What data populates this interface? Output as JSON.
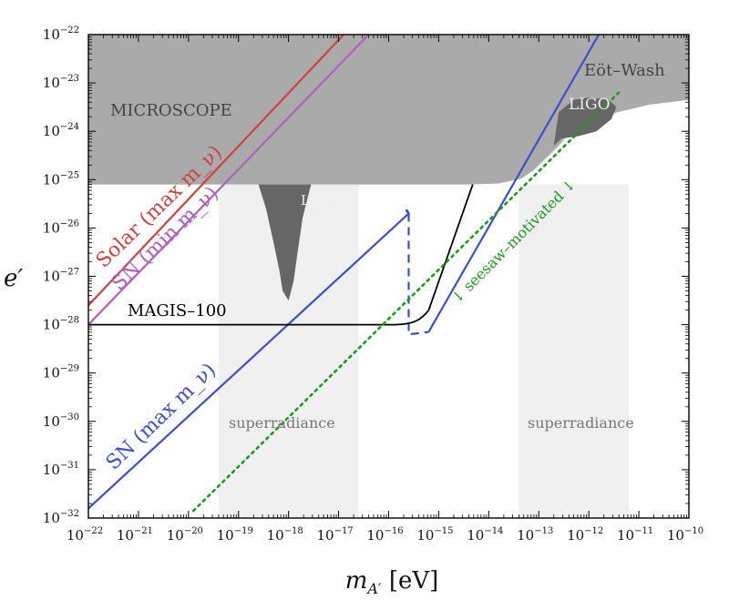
{
  "chart_data": {
    "type": "line",
    "title": "",
    "xlabel": "m_{A′} [eV]",
    "ylabel": "e′",
    "xscale": "log",
    "yscale": "log",
    "xlim": [
      -22,
      -10
    ],
    "ylim": [
      -32,
      -22
    ],
    "x_ticks": [
      -22,
      -21,
      -20,
      -19,
      -18,
      -17,
      -16,
      -15,
      -14,
      -13,
      -12,
      -11,
      -10
    ],
    "y_ticks": [
      -22,
      -23,
      -24,
      -25,
      -26,
      -27,
      -28,
      -29,
      -30,
      -31,
      -32
    ],
    "tick_base": "10",
    "grid": false,
    "colors": {
      "excluded": "#aaaaaa",
      "dark_excluded": "#666666",
      "superradiance": "#f0f0f0",
      "solar": "#d04040",
      "sn_min": "#b060b8",
      "sn_max": "#3a4fcf",
      "magis": "#000000",
      "seesaw": "#1a9a1a"
    },
    "series": [
      {
        "name": "Solar (max m_ν)",
        "points": [
          [
            -22,
            -27.6
          ],
          [
            -16.9,
            -22
          ]
        ]
      },
      {
        "name": "SN (min m_ν)",
        "points": [
          [
            -22,
            -28
          ],
          [
            -16.4,
            -22
          ]
        ]
      },
      {
        "name": "SN (max m_ν)",
        "points": [
          [
            -22,
            -31.8
          ],
          [
            -15.6,
            -25.7
          ]
        ],
        "second_branch": [
          [
            -15.2,
            -28.15
          ],
          [
            -11.8,
            -22
          ]
        ],
        "dashed": [
          [
            -15.6,
            -25.7
          ],
          [
            -15.6,
            -28.2
          ],
          [
            -15.2,
            -28.15
          ]
        ]
      },
      {
        "name": "MAGIS–100",
        "points": [
          [
            -22,
            -28
          ],
          [
            -18,
            -28
          ],
          [
            -16,
            -27.97
          ],
          [
            -15.5,
            -27.8
          ],
          [
            -14.6,
            -26.5
          ],
          [
            -14.3,
            -25.1
          ]
        ]
      },
      {
        "name": "↓ seesaw–motivated ↓",
        "points": [
          [
            -19.9,
            -31.85
          ],
          [
            -11.4,
            -23.2
          ]
        ]
      }
    ],
    "regions": [
      {
        "name": "MICROSCOPE",
        "type": "excluded"
      },
      {
        "name": "Eöt–Wash",
        "type": "excluded"
      },
      {
        "name": "LISA PF",
        "type": "excluded_dark"
      },
      {
        "name": "LIGO",
        "type": "excluded_dark"
      },
      {
        "name": "superradiance",
        "range": [
          -19.4,
          -16.6
        ]
      },
      {
        "name": "superradiance",
        "range": [
          -13.4,
          -11.2
        ]
      }
    ],
    "annotations": {
      "microscope": "MICROSCOPE",
      "eotwash": "Eöt–Wash",
      "lisa_line1": "LISA",
      "lisa_line2": "PF",
      "ligo": "LIGO",
      "superradiance": "superradiance",
      "magis": "MAGIS–100",
      "solar": "Solar (max m_ν)",
      "sn_min": "SN (min m_ν)",
      "sn_max": "SN (max m_ν)",
      "seesaw": "↓ seesaw–motivated ↓"
    }
  }
}
